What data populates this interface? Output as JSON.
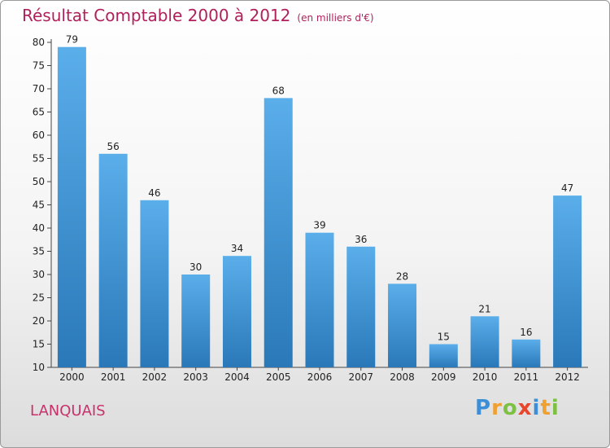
{
  "header": {
    "title": "Résultat Comptable 2000 à 2012",
    "subtitle": "(en milliers d'€)"
  },
  "commune": "LANQUAIS",
  "logo": {
    "text": "Proxiti"
  },
  "colors": {
    "title": "#b0205a",
    "bar_top": "#5aaeea",
    "bar_bottom": "#2a78b8"
  },
  "chart_data": {
    "type": "bar",
    "title": "Résultat Comptable 2000 à 2012",
    "subtitle": "(en milliers d'€)",
    "categories": [
      "2000",
      "2001",
      "2002",
      "2003",
      "2004",
      "2005",
      "2006",
      "2007",
      "2008",
      "2009",
      "2010",
      "2011",
      "2012"
    ],
    "values": [
      79,
      56,
      46,
      30,
      34,
      68,
      39,
      36,
      28,
      15,
      21,
      16,
      47
    ],
    "ylim": [
      10,
      80
    ],
    "yticks": [
      10,
      15,
      20,
      25,
      30,
      35,
      40,
      45,
      50,
      55,
      60,
      65,
      70,
      75,
      80
    ],
    "grid": false,
    "legend": "none"
  }
}
